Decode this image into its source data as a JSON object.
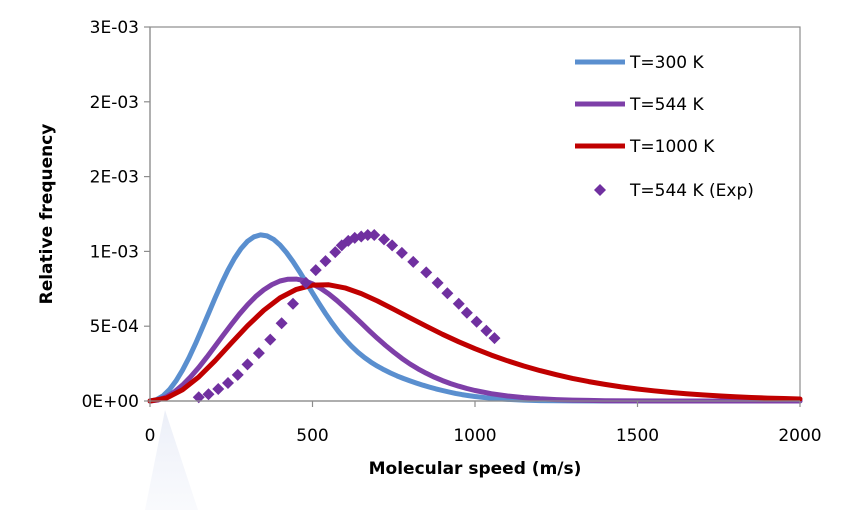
{
  "chart_data": {
    "type": "line",
    "title": "",
    "xlabel": "Molecular speed (m/s)",
    "ylabel": "Relative frequency",
    "xlim": [
      0,
      2000
    ],
    "ylim": [
      0,
      0.0025
    ],
    "x_ticks": [
      {
        "value": 0,
        "label": "0"
      },
      {
        "value": 500,
        "label": "500"
      },
      {
        "value": 1000,
        "label": "1000"
      },
      {
        "value": 1500,
        "label": "1500"
      },
      {
        "value": 2000,
        "label": "2000"
      }
    ],
    "y_ticks": [
      {
        "value": 0,
        "label": "0E+00"
      },
      {
        "value": 0.0005,
        "label": "5E-04"
      },
      {
        "value": 0.001,
        "label": "1E-03"
      },
      {
        "value": 0.0015,
        "label": "2E-03"
      },
      {
        "value": 0.002,
        "label": "2E-03"
      },
      {
        "value": 0.0025,
        "label": "3E-03"
      }
    ],
    "grid": false,
    "legend_position": "top-right",
    "series": [
      {
        "name": "T=300 K",
        "style": "line",
        "color": "#5a8fcf",
        "x": [
          0,
          20,
          40,
          60,
          80,
          100,
          120,
          140,
          160,
          180,
          200,
          220,
          240,
          260,
          280,
          300,
          320,
          340,
          360,
          380,
          400,
          420,
          440,
          460,
          480,
          500,
          520,
          540,
          560,
          580,
          600,
          620,
          640,
          660,
          680,
          700,
          720,
          740,
          760,
          780,
          800,
          820,
          840,
          860,
          880,
          900,
          920,
          940,
          960,
          980,
          1000,
          1050,
          1100,
          1150,
          1200,
          1300,
          1400,
          1500,
          1600,
          1700,
          1800,
          1900,
          2000
        ],
        "y": [
          0,
          8.6e-06,
          3.43e-05,
          7.65e-05,
          0.0001342,
          0.0002059,
          0.0002896,
          0.0003827,
          0.0004823,
          0.0005849,
          0.0006871,
          0.000785,
          0.0008751,
          0.000954,
          0.0010189,
          0.0010673,
          0.0010979,
          0.00111,
          0.0011039,
          0.0010808,
          0.0010427,
          0.0009919,
          0.0009316,
          0.0008647,
          0.0007941,
          0.0007225,
          0.0006521,
          0.0005848,
          0.0005219,
          0.0004641,
          0.0004122,
          0.0003661,
          0.0003257,
          0.0002904,
          0.0002595,
          0.0002323,
          0.0002083,
          0.0001869,
          0.0001677,
          0.0001503,
          0.0001343,
          0.0001195,
          0.0001057,
          9.29e-05,
          8.1e-05,
          7e-05,
          6e-05,
          5.1e-05,
          4.3e-05,
          3.59e-05,
          2.98e-05,
          1.8e-05,
          1.04e-05,
          5.7e-06,
          3e-06,
          7e-07,
          1e-07,
          0,
          0,
          0,
          0,
          0,
          0
        ]
      },
      {
        "name": "T=544 K",
        "style": "line",
        "color": "#7e3fa8",
        "x": [
          0,
          25,
          50,
          75,
          100,
          125,
          150,
          175,
          200,
          225,
          250,
          275,
          300,
          325,
          350,
          375,
          400,
          425,
          450,
          475,
          500,
          525,
          550,
          575,
          600,
          625,
          650,
          675,
          700,
          725,
          750,
          775,
          800,
          825,
          850,
          875,
          900,
          925,
          950,
          975,
          1000,
          1050,
          1100,
          1150,
          1200,
          1250,
          1300,
          1350,
          1400,
          1500,
          1600,
          1700,
          1800,
          1900,
          2000
        ],
        "y": [
          0,
          6.9e-06,
          2.75e-05,
          6.1e-05,
          0.0001062,
          0.0001614,
          0.0002245,
          0.0002935,
          0.0003659,
          0.0004394,
          0.0005115,
          0.00058,
          0.0006427,
          0.0006977,
          0.0007433,
          0.0007784,
          0.0008022,
          0.0008143,
          0.0008148,
          0.0008042,
          0.0007834,
          0.0007535,
          0.0007158,
          0.000672,
          0.0006238,
          0.0005729,
          0.0005208,
          0.0004689,
          0.0004186,
          0.0003707,
          0.0003259,
          0.0002848,
          0.0002476,
          0.0002143,
          0.0001849,
          0.000159,
          0.0001362,
          0.0001163,
          9.88e-05,
          8.35e-05,
          7.02e-05,
          4.89e-05,
          3.35e-05,
          2.25e-05,
          1.48e-05,
          9.6e-06,
          6.1e-06,
          3.8e-06,
          2.3e-06,
          8e-07,
          3e-07,
          1e-07,
          0,
          0,
          0
        ]
      },
      {
        "name": "T=1000 K",
        "style": "line",
        "color": "#c00000",
        "x": [
          0,
          50,
          100,
          150,
          200,
          250,
          300,
          350,
          400,
          450,
          500,
          550,
          600,
          650,
          700,
          750,
          800,
          850,
          900,
          950,
          1000,
          1050,
          1100,
          1150,
          1200,
          1250,
          1300,
          1350,
          1400,
          1450,
          1500,
          1550,
          1600,
          1650,
          1700,
          1750,
          1800,
          1850,
          1900,
          1950,
          2000
        ],
        "y": [
          0,
          1.92e-05,
          7.48e-05,
          0.0001611,
          0.0002689,
          0.0003868,
          0.0005028,
          0.0006064,
          0.0006891,
          0.0007459,
          0.0007747,
          0.0007768,
          0.000756,
          0.0007179,
          0.0006684,
          0.000613,
          0.000556,
          0.0004998,
          0.0004461,
          0.0003958,
          0.0003494,
          0.000307,
          0.0002686,
          0.000234,
          0.000203,
          0.0001755,
          0.0001511,
          0.0001296,
          0.0001108,
          9.44e-05,
          8.02e-05,
          6.8e-05,
          5.74e-05,
          4.84e-05,
          4.06e-05,
          3.4e-05,
          2.84e-05,
          2.37e-05,
          1.97e-05,
          1.64e-05,
          1.36e-05
        ]
      },
      {
        "name": "T=544 K (Exp)",
        "style": "scatter",
        "color": "#7030a0",
        "x": [
          150,
          180,
          210,
          240,
          270,
          300,
          335,
          370,
          405,
          440,
          480,
          510,
          540,
          570,
          590,
          610,
          630,
          650,
          670,
          690,
          720,
          745,
          775,
          810,
          850,
          885,
          915,
          950,
          975,
          1005,
          1035,
          1060
        ],
        "y": [
          2.5e-05,
          4.5e-05,
          8e-05,
          0.00012,
          0.000175,
          0.000245,
          0.00032,
          0.00041,
          0.00052,
          0.00065,
          0.00079,
          0.000875,
          0.000935,
          0.000995,
          0.00104,
          0.00107,
          0.00109,
          0.0011,
          0.00111,
          0.00111,
          0.00108,
          0.00104,
          0.00099,
          0.00093,
          0.00086,
          0.00079,
          0.00072,
          0.00065,
          0.00059,
          0.00053,
          0.00047,
          0.00042
        ]
      }
    ]
  }
}
